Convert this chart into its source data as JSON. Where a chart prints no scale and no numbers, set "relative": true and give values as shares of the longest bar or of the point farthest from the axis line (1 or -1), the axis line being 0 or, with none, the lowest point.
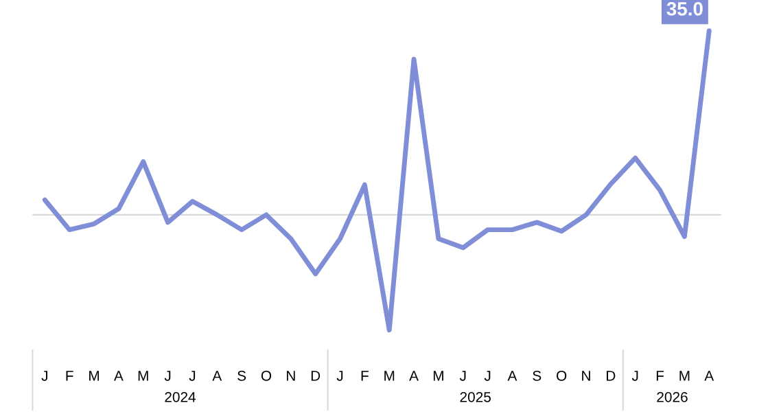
{
  "chart_data": {
    "type": "line",
    "relative": true,
    "color": "#7f8ed6",
    "categories": [
      "J",
      "F",
      "M",
      "A",
      "M",
      "J",
      "J",
      "A",
      "S",
      "O",
      "N",
      "D",
      "J",
      "F",
      "M",
      "A",
      "M",
      "J",
      "J",
      "A",
      "S",
      "O",
      "N",
      "D",
      "J",
      "F",
      "M",
      "A"
    ],
    "values": [
      0.081,
      -0.081,
      -0.049,
      0.033,
      0.289,
      -0.041,
      0.073,
      0,
      -0.081,
      0,
      -0.13,
      -0.321,
      -0.13,
      0.163,
      -0.626,
      0.846,
      -0.13,
      -0.179,
      -0.081,
      -0.081,
      -0.041,
      -0.089,
      0,
      0.167,
      0.309,
      0.134,
      -0.118,
      1
    ],
    "annotations": [
      "35.0",
      "2024",
      "2025",
      "2026"
    ],
    "grid": false,
    "legend": false,
    "marker": "none",
    "line_style": "solid"
  }
}
